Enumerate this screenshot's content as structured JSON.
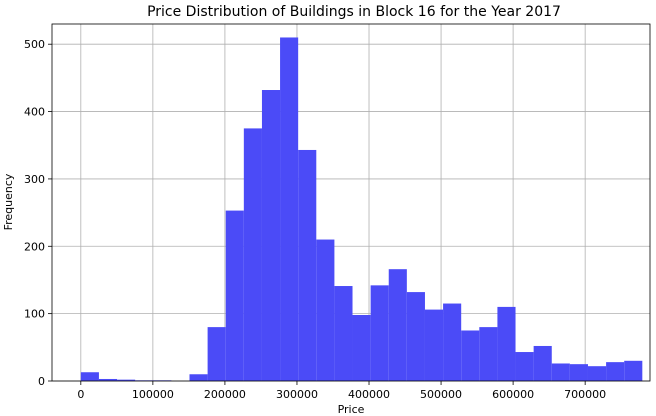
{
  "chart_data": {
    "type": "bar",
    "title": "Price Distribution of Buildings in Block 16 for the Year 2017",
    "xlabel": "Price",
    "ylabel": "Frequency",
    "xlim": [
      -40000,
      790000
    ],
    "ylim": [
      0,
      530
    ],
    "grid": true,
    "color": "#4b4bf7",
    "bin_width": 25140,
    "bin_start": 0,
    "values": [
      13,
      3,
      2,
      1,
      1,
      0,
      10,
      80,
      253,
      375,
      432,
      510,
      343,
      210,
      141,
      98,
      142,
      166,
      132,
      106,
      115,
      75,
      80,
      110,
      43,
      52,
      26,
      25,
      22,
      28,
      30
    ],
    "x_ticks": [
      0,
      100000,
      200000,
      300000,
      400000,
      500000,
      600000,
      700000
    ],
    "x_tick_labels": [
      "0",
      "100000",
      "200000",
      "300000",
      "400000",
      "500000",
      "600000",
      "700000"
    ],
    "y_ticks": [
      0,
      100,
      200,
      300,
      400,
      500
    ],
    "y_tick_labels": [
      "0",
      "100",
      "200",
      "300",
      "400",
      "500"
    ]
  }
}
